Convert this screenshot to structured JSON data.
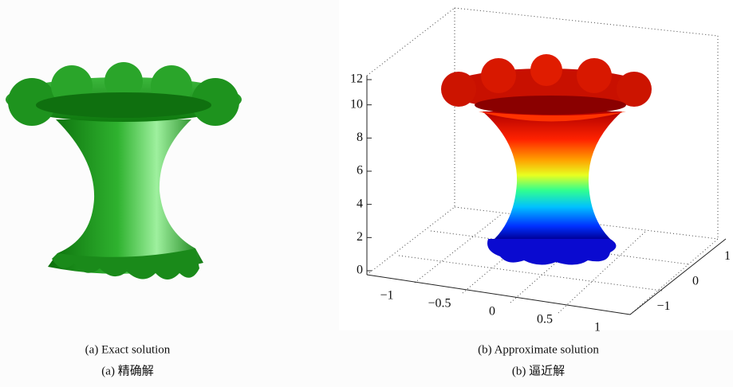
{
  "panel_a": {
    "caption": "(a) Exact solution",
    "caption_zh": "(a)  精确解"
  },
  "panel_b": {
    "caption": "(b) Approximate solution",
    "caption_zh": "(b)  逼近解",
    "axes": {
      "z_ticks": [
        "0",
        "2",
        "4",
        "6",
        "8",
        "10",
        "12"
      ],
      "x_ticks": [
        "−1",
        "−0.5",
        "0",
        "0.5",
        "1"
      ],
      "y_ticks": [
        "−1",
        "0",
        "1"
      ]
    }
  }
}
